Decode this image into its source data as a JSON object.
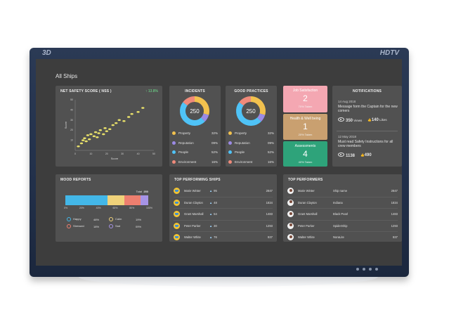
{
  "tv": {
    "brand_left": "3D",
    "brand_right": "HDTV"
  },
  "screen": {
    "title": "All Ships"
  },
  "nss": {
    "title": "NET SAFETY SCORE   ( NSS )",
    "delta": "13.8%"
  },
  "chart_data": {
    "type": "scatter",
    "xlabel": "Score",
    "ylabel": "Score",
    "xlim": [
      0,
      50
    ],
    "ylim": [
      0,
      50
    ],
    "x_ticks": [
      "0",
      "10",
      "20",
      "30",
      "40",
      "50"
    ],
    "y_ticks": [
      "10",
      "20",
      "30",
      "40",
      "50"
    ],
    "series": [
      {
        "points": [
          [
            2,
            4
          ],
          [
            4,
            7
          ],
          [
            5,
            10
          ],
          [
            6,
            12
          ],
          [
            7,
            9
          ],
          [
            8,
            15
          ],
          [
            9,
            11
          ],
          [
            10,
            16
          ],
          [
            12,
            14
          ],
          [
            13,
            18
          ],
          [
            14,
            13
          ],
          [
            15,
            17
          ],
          [
            16,
            20
          ],
          [
            18,
            16
          ],
          [
            19,
            22
          ],
          [
            20,
            19
          ],
          [
            22,
            21
          ],
          [
            24,
            25
          ],
          [
            26,
            27
          ],
          [
            28,
            30
          ],
          [
            31,
            29
          ],
          [
            34,
            33
          ],
          [
            36,
            36
          ],
          [
            40,
            38
          ],
          [
            43,
            42
          ]
        ]
      }
    ],
    "color": "#e8e06a"
  },
  "incidents": {
    "title": "INCIDENTS",
    "total": "250",
    "items": [
      {
        "name": "Property",
        "value": "32%",
        "color": "#f2c14e"
      },
      {
        "name": "Reputation",
        "value": "09%",
        "color": "#9b8ae6"
      },
      {
        "name": "People",
        "value": "52%",
        "color": "#4fc3f7"
      },
      {
        "name": "Environment",
        "value": "16%",
        "color": "#ef8a7a"
      }
    ]
  },
  "good_practices": {
    "title": "GOOD PRACTICES",
    "total": "250",
    "items": [
      {
        "name": "Property",
        "value": "32%",
        "color": "#f2c14e"
      },
      {
        "name": "Reputation",
        "value": "09%",
        "color": "#9b8ae6"
      },
      {
        "name": "People",
        "value": "52%",
        "color": "#4fc3f7"
      },
      {
        "name": "Environment",
        "value": "16%",
        "color": "#ef8a7a"
      }
    ]
  },
  "cards": [
    {
      "title": "Job Satisfaction",
      "number": "2",
      "sub": "70% Taken",
      "color": "#f4a7b2"
    },
    {
      "title": "Health & Well being",
      "number": "1",
      "sub": "20% Taken",
      "color": "#c9a070"
    },
    {
      "title": "Assessments",
      "number": "4",
      "sub": "40% Taken",
      "color": "#2ea37a"
    }
  ],
  "notifications": {
    "title": "NOTIFICATIONS",
    "items": [
      {
        "date": "14 Aug 2018",
        "message": "Message form the Captain for the new comers",
        "views": "350",
        "views_label": "Views",
        "likes": "140",
        "likes_label": "Likes"
      },
      {
        "date": "12 May 2018",
        "message": "Must read Safety Instructions for all crew members",
        "views": "1138",
        "views_label": "",
        "likes": "490",
        "likes_label": ""
      }
    ]
  },
  "mood": {
    "title": "MOOD REPORTS",
    "total_label": "Total",
    "total": "250",
    "axis": [
      "0%",
      "20%",
      "40%",
      "60%",
      "80%",
      "100%"
    ],
    "segments": [
      {
        "name": "Happy",
        "value": 48,
        "color": "#43b7e8"
      },
      {
        "name": "Calm",
        "value": 19,
        "color": "#f0d27a"
      },
      {
        "name": "Stressed",
        "value": 18,
        "color": "#ee7f6f"
      },
      {
        "name": "Sad",
        "value": 9,
        "color": "#a693e6"
      }
    ],
    "legend": [
      {
        "name": "Happy",
        "value": "48%",
        "color": "#43b7e8"
      },
      {
        "name": "Calm",
        "value": "19%",
        "color": "#f0d27a"
      },
      {
        "name": "Stressed",
        "value": "18%",
        "color": "#ee7f6f"
      },
      {
        "name": "Sad",
        "value": "09%",
        "color": "#a693e6"
      }
    ]
  },
  "top_ships": {
    "title": "TOP PERFORMING SHIPS",
    "rows": [
      {
        "name": "Marie Winter",
        "score": "95",
        "value": "2847"
      },
      {
        "name": "Duran Clayton",
        "score": "48",
        "value": "1834"
      },
      {
        "name": "Grant Marshall",
        "score": "54",
        "value": "1483"
      },
      {
        "name": "Peter Parker",
        "score": "30",
        "value": "1293"
      },
      {
        "name": "Walter White",
        "score": "76",
        "value": "937"
      }
    ]
  },
  "top_performers": {
    "title": "TOP PERFORMERS",
    "rows": [
      {
        "name": "Marie Winter",
        "ship": "Ship name",
        "value": "2847"
      },
      {
        "name": "Duran Clayton",
        "ship": "Indiana",
        "value": "1834"
      },
      {
        "name": "Grant Marshall",
        "ship": "Black Pearl",
        "value": "1483"
      },
      {
        "name": "Peter Parker",
        "ship": "SpiderShip",
        "value": "1293"
      },
      {
        "name": "Walter White",
        "ship": "NoraLite",
        "value": "937"
      }
    ]
  }
}
